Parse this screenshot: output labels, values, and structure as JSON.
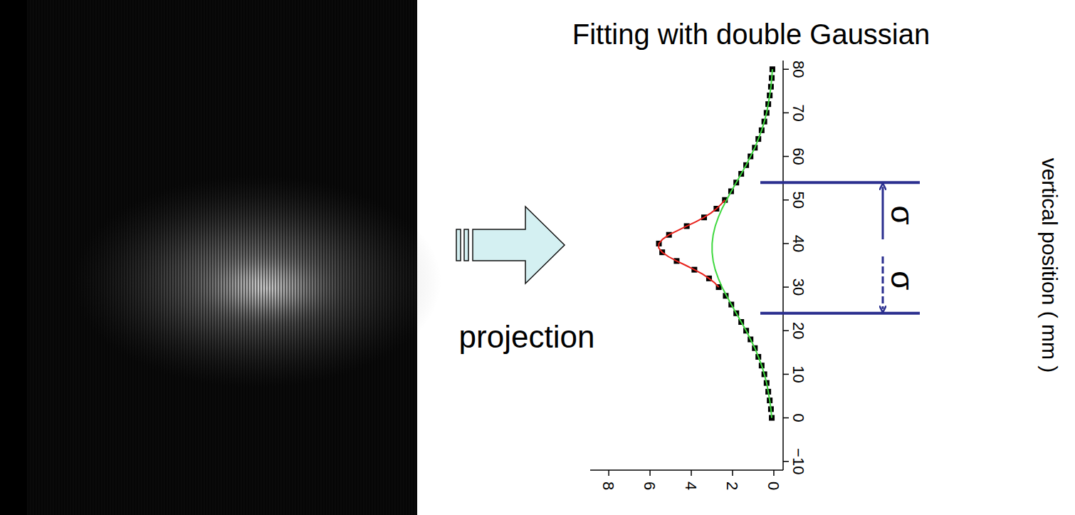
{
  "arrow_label": "projection",
  "chart_data": {
    "type": "scatter",
    "title": "Fitting with double Gaussian",
    "xlabel": "vertical position ( mm )",
    "xlim": [
      -12,
      82
    ],
    "xticks": [
      {
        "value": -10,
        "label": "−10"
      },
      0,
      10,
      20,
      30,
      40,
      50,
      60,
      70,
      80
    ],
    "ylim": [
      -0.45,
      8.9
    ],
    "yticks": [
      0,
      2,
      4,
      6,
      8
    ],
    "sigma_lines": [
      24,
      54
    ],
    "annotations": [
      "σ",
      "σ"
    ],
    "series": [
      {
        "type": "scatter",
        "marker": "square",
        "color": "#000000",
        "x": [
          0,
          2,
          4,
          6,
          8,
          10,
          12,
          14,
          16,
          18,
          20,
          22,
          24,
          26,
          28,
          30,
          32,
          34,
          36,
          38,
          40,
          42,
          44,
          46,
          48,
          50,
          52,
          54,
          56,
          58,
          60,
          62,
          64,
          66,
          68,
          70,
          72,
          74,
          76,
          78,
          80
        ],
        "values": [
          0.1,
          0.14,
          0.2,
          0.27,
          0.35,
          0.46,
          0.59,
          0.75,
          0.92,
          1.13,
          1.34,
          1.58,
          1.82,
          2.06,
          2.33,
          2.67,
          3.14,
          3.85,
          4.71,
          5.41,
          5.57,
          5.08,
          4.22,
          3.38,
          2.78,
          2.37,
          2.07,
          1.82,
          1.58,
          1.34,
          1.13,
          0.92,
          0.75,
          0.59,
          0.46,
          0.35,
          0.27,
          0.2,
          0.14,
          0.1,
          0.07
        ]
      },
      {
        "type": "line",
        "line_style": "solid",
        "color": "#e8221c",
        "x": [
          30,
          31,
          32,
          33,
          34,
          35,
          36,
          37,
          38,
          39,
          40,
          41,
          42,
          43,
          44,
          45,
          46,
          47,
          48,
          49,
          50
        ],
        "values": [
          2.67,
          2.87,
          3.14,
          3.46,
          3.85,
          4.27,
          4.71,
          5.11,
          5.41,
          5.58,
          5.57,
          5.39,
          5.08,
          4.66,
          4.22,
          3.78,
          3.38,
          3.05,
          2.78,
          2.56,
          2.37
        ]
      },
      {
        "type": "line",
        "line_style": "solid",
        "color": "#3fd83f",
        "x": [
          0,
          2,
          4,
          6,
          8,
          10,
          12,
          14,
          16,
          18,
          20,
          22,
          24,
          26,
          28,
          30,
          32,
          34,
          36,
          38,
          40,
          42,
          44,
          46,
          48,
          50,
          52,
          54,
          56,
          58,
          60,
          62,
          64,
          66,
          68,
          70,
          72,
          74,
          76,
          78,
          80
        ],
        "values": [
          0.1,
          0.14,
          0.2,
          0.27,
          0.35,
          0.46,
          0.59,
          0.75,
          0.92,
          1.13,
          1.34,
          1.58,
          1.82,
          2.06,
          2.29,
          2.51,
          2.69,
          2.84,
          2.94,
          2.99,
          2.99,
          2.94,
          2.84,
          2.69,
          2.51,
          2.29,
          2.06,
          1.82,
          1.58,
          1.34,
          1.13,
          0.92,
          0.75,
          0.59,
          0.46,
          0.35,
          0.27,
          0.2,
          0.14,
          0.1,
          0.07
        ]
      }
    ]
  }
}
